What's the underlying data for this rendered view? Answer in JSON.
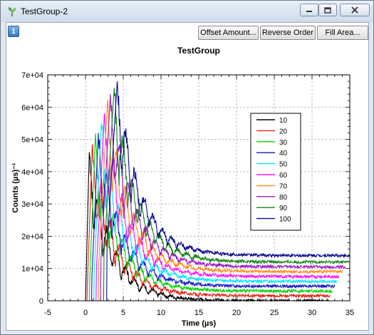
{
  "window": {
    "title": "TestGroup-2",
    "controls": {
      "minimize": "minimize",
      "maximize": "maximize",
      "close": "close"
    }
  },
  "toolbar": {
    "view_button": "1",
    "offset_label": "Offset Amount...",
    "reverse_label": "Reverse Order",
    "fill_label": "Fill Area..."
  },
  "chart_data": {
    "type": "line",
    "title": "TestGroup",
    "xlabel": "Time (µs)",
    "ylabel": "Counts (µs)⁻¹",
    "xlim": [
      -5,
      35
    ],
    "ylim": [
      0,
      70000
    ],
    "xticks": [
      -5,
      0,
      5,
      10,
      15,
      20,
      25,
      30,
      35
    ],
    "xtick_labels": [
      "-5",
      "0",
      "5",
      "10",
      "15",
      "20",
      "25",
      "30",
      "35"
    ],
    "yticks": [
      0,
      10000,
      20000,
      30000,
      40000,
      50000,
      60000,
      70000
    ],
    "ytick_labels": [
      "0",
      "1e+04",
      "2e+04",
      "3e+04",
      "4e+04",
      "5e+04",
      "6e+04",
      "7e+04"
    ],
    "grid": true,
    "legend_position": "right",
    "series": [
      {
        "name": "10",
        "color": "#000000",
        "onset": 0.0,
        "peak_time": 0.5,
        "peak": 46000,
        "baseline": 0,
        "end": 32.2
      },
      {
        "name": "20",
        "color": "#e8231a",
        "onset": 0.2,
        "peak_time": 0.9,
        "peak": 48000,
        "baseline": 1500,
        "end": 32.4
      },
      {
        "name": "30",
        "color": "#00d400",
        "onset": 0.5,
        "peak_time": 1.3,
        "peak": 50000,
        "baseline": 3000,
        "end": 32.7
      },
      {
        "name": "40",
        "color": "#1414c8",
        "onset": 0.8,
        "peak_time": 1.7,
        "peak": 52000,
        "baseline": 4500,
        "end": 33.0
      },
      {
        "name": "50",
        "color": "#00e8ff",
        "onset": 1.1,
        "peak_time": 2.1,
        "peak": 55000,
        "baseline": 6000,
        "end": 33.3
      },
      {
        "name": "60",
        "color": "#ff10ff",
        "onset": 1.4,
        "peak_time": 2.5,
        "peak": 58000,
        "baseline": 7500,
        "end": 33.6
      },
      {
        "name": "70",
        "color": "#ff8c1a",
        "onset": 1.7,
        "peak_time": 2.9,
        "peak": 61000,
        "baseline": 9000,
        "end": 34.0
      },
      {
        "name": "80",
        "color": "#9a16c8",
        "onset": 2.0,
        "peak_time": 3.3,
        "peak": 64000,
        "baseline": 10500,
        "end": 34.4
      },
      {
        "name": "90",
        "color": "#148414",
        "onset": 2.4,
        "peak_time": 3.8,
        "peak": 66000,
        "baseline": 12000,
        "end": 34.8
      },
      {
        "name": "100",
        "color": "#0a0a8c",
        "onset": 2.8,
        "peak_time": 4.2,
        "peak": 68000,
        "baseline": 14000,
        "end": 35.0
      }
    ]
  }
}
